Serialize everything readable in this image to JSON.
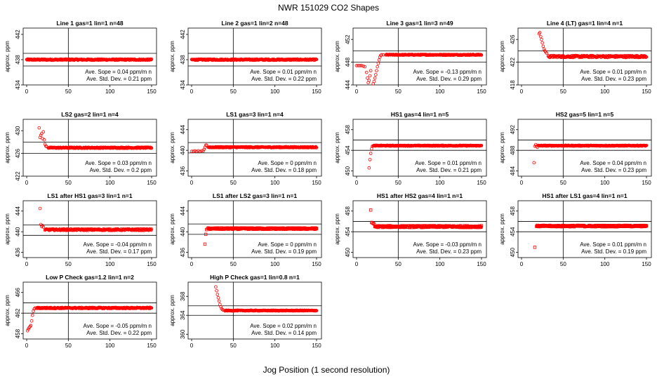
{
  "figure": {
    "title": "NWR  151029  CO2 Shapes",
    "xlabel": "Jog Position (1 second resolution)"
  },
  "chart_data": [
    {
      "type": "scatter",
      "title": "Line 1 gas=1 lin=1 n=48",
      "ylabel": "approx. ppm",
      "xlim": [
        0,
        150
      ],
      "xticks": [
        0,
        50,
        100,
        150
      ],
      "ylim": [
        434,
        443
      ],
      "yticks": [
        434,
        438,
        442
      ],
      "hlines": [
        439.0,
        437.0
      ],
      "vline": 50,
      "marker": "circle",
      "shape": {
        "start": 0,
        "end": 150,
        "base": 438.0,
        "noise": 0.1,
        "early": []
      },
      "slope_text": "Ave. Sope =  0.04  ppm/m n",
      "sd_text": "Ave. Std. Dev. =  0.21  ppm"
    },
    {
      "type": "scatter",
      "title": "Line 2 gas=1 lin=2 n=48",
      "ylabel": "approx. ppm",
      "xlim": [
        0,
        150
      ],
      "xticks": [
        0,
        50,
        100,
        150
      ],
      "ylim": [
        434,
        443
      ],
      "yticks": [
        434,
        438,
        442
      ],
      "hlines": [
        439.0,
        437.0
      ],
      "vline": 50,
      "marker": "circle",
      "shape": {
        "start": 0,
        "end": 150,
        "base": 438.0,
        "noise": 0.1,
        "early": []
      },
      "slope_text": "Ave. Sope =  0.01  ppm/m n",
      "sd_text": "Ave. Std. Dev. =  0.22  ppm"
    },
    {
      "type": "scatter",
      "title": "Line 3 gas=1 lin=3 n=49",
      "ylabel": "approx. ppm",
      "xlim": [
        0,
        150
      ],
      "xticks": [
        0,
        50,
        100,
        150
      ],
      "ylim": [
        444,
        454
      ],
      "yticks": [
        444,
        448,
        452
      ],
      "hlines": [
        450.0,
        448.0
      ],
      "vline": 50,
      "marker": "circle",
      "shape": {
        "start": 35,
        "end": 150,
        "base": 449.3,
        "noise": 0.08,
        "early": [
          [
            0,
            447.4
          ],
          [
            2,
            447.4
          ],
          [
            4,
            447.4
          ],
          [
            6,
            447.4
          ],
          [
            8,
            447.3
          ],
          [
            10,
            447.2
          ],
          [
            12,
            446.2
          ],
          [
            13,
            445.2
          ],
          [
            14,
            444.4
          ],
          [
            15,
            444.8
          ],
          [
            16,
            445.6
          ],
          [
            17,
            446.5
          ],
          [
            19,
            443.8
          ],
          [
            20,
            444.2
          ],
          [
            21,
            444.6
          ],
          [
            22,
            445.2
          ],
          [
            23,
            445.8
          ],
          [
            24,
            446.5
          ],
          [
            25,
            447.2
          ],
          [
            26,
            447.8
          ],
          [
            27,
            448.4
          ],
          [
            28,
            448.9
          ],
          [
            29,
            449.2
          ],
          [
            30,
            449.3
          ],
          [
            32,
            449.3
          ]
        ]
      },
      "slope_text": "Ave. Sope =  -0.13  ppm/m n",
      "sd_text": "Ave. Std. Dev. =  0.29  ppm"
    },
    {
      "type": "scatter",
      "title": "Line 4 (LT) gas=1 lin=4 n=1",
      "ylabel": "approx. ppm",
      "xlim": [
        0,
        150
      ],
      "xticks": [
        0,
        50,
        100,
        150
      ],
      "ylim": [
        418,
        428
      ],
      "yticks": [
        418,
        422,
        426
      ],
      "hlines": [
        424.0,
        422.0
      ],
      "vline": 50,
      "marker": "circle",
      "shape": {
        "start": 32,
        "end": 150,
        "base": 423.0,
        "noise": 0.18,
        "early": [
          [
            21,
            427.0
          ],
          [
            22,
            427.2
          ],
          [
            23,
            426.5
          ],
          [
            24,
            426.0
          ],
          [
            25,
            425.4
          ],
          [
            26,
            424.8
          ],
          [
            27,
            424.3
          ],
          [
            28,
            424.0
          ],
          [
            29,
            423.8
          ],
          [
            30,
            423.6
          ]
        ]
      },
      "slope_text": "Ave. Sope =  0.01  ppm/m n",
      "sd_text": "Ave. Std. Dev. =  0.23  ppm"
    },
    {
      "type": "scatter",
      "title": "LS2 gas=2 lin=1 n=4",
      "ylabel": "approx. ppm",
      "xlim": [
        0,
        150
      ],
      "xticks": [
        0,
        50,
        100,
        150
      ],
      "ylim": [
        422,
        432
      ],
      "yticks": [
        422,
        426,
        430
      ],
      "hlines": [
        428.0,
        426.0
      ],
      "vline": 50,
      "marker": "circle",
      "shape": {
        "start": 26,
        "end": 150,
        "base": 427.0,
        "noise": 0.1,
        "early": [
          [
            15,
            430.5
          ],
          [
            16,
            428.8
          ],
          [
            17,
            429.2
          ],
          [
            18,
            429.5
          ],
          [
            19,
            428.6
          ],
          [
            20,
            429.8
          ],
          [
            21,
            428.4
          ],
          [
            22,
            427.6
          ],
          [
            23,
            427.3
          ],
          [
            24,
            427.2
          ]
        ]
      },
      "slope_text": "Ave. Sope =  0.03  ppm/m n",
      "sd_text": "Ave. Std. Dev. =  0.2  ppm"
    },
    {
      "type": "scatter",
      "title": "LS1 gas=3 lin=1 n=4",
      "ylabel": "approx. ppm",
      "xlim": [
        0,
        150
      ],
      "xticks": [
        0,
        50,
        100,
        150
      ],
      "ylim": [
        435,
        446
      ],
      "yticks": [
        436,
        440,
        444
      ],
      "hlines": [
        441.5,
        439.5
      ],
      "vline": 50,
      "marker": "circle",
      "shape": {
        "start": 20,
        "end": 150,
        "base": 440.6,
        "noise": 0.1,
        "early": [
          [
            0,
            439.8
          ],
          [
            2,
            439.8
          ],
          [
            4,
            439.9
          ],
          [
            6,
            439.8
          ],
          [
            8,
            439.9
          ],
          [
            10,
            439.8
          ],
          [
            12,
            439.9
          ],
          [
            14,
            439.9
          ],
          [
            15,
            440.2
          ],
          [
            16,
            440.6
          ],
          [
            17,
            441.0
          ],
          [
            18,
            441.0
          ]
        ]
      },
      "slope_text": "Ave. Sope =  0  ppm/m n",
      "sd_text": "Ave. Std. Dev. =  0.18  ppm"
    },
    {
      "type": "scatter",
      "title": "HS1 gas=4 lin=1 n=5",
      "ylabel": "approx. ppm",
      "xlim": [
        0,
        150
      ],
      "xticks": [
        0,
        50,
        100,
        150
      ],
      "ylim": [
        449,
        460
      ],
      "yticks": [
        450,
        454,
        458
      ],
      "hlines": [
        456.0,
        454.0
      ],
      "vline": 50,
      "marker": "circle",
      "shape": {
        "start": 20,
        "end": 150,
        "base": 454.9,
        "noise": 0.08,
        "early": [
          [
            15,
            450.6
          ],
          [
            16,
            452.2
          ],
          [
            17,
            453.4
          ],
          [
            18,
            454.3
          ],
          [
            19,
            454.8
          ]
        ]
      },
      "slope_text": "Ave. Sope =  0.01  ppm/m n",
      "sd_text": "Ave. Std. Dev. =  0.21  ppm"
    },
    {
      "type": "scatter",
      "title": "HS2 gas=5 lin=1 n=5",
      "ylabel": "approx. ppm",
      "xlim": [
        0,
        150
      ],
      "xticks": [
        0,
        50,
        100,
        150
      ],
      "ylim": [
        483,
        494
      ],
      "yticks": [
        484,
        488,
        492
      ],
      "hlines": [
        490.0,
        488.0
      ],
      "vline": 50,
      "marker": "circle",
      "shape": {
        "start": 20,
        "end": 150,
        "base": 488.9,
        "noise": 0.08,
        "early": [
          [
            15,
            485.6
          ],
          [
            16,
            488.8
          ],
          [
            17,
            489.1
          ],
          [
            18,
            488.8
          ],
          [
            19,
            488.6
          ]
        ]
      },
      "slope_text": "Ave. Sope =  0.04  ppm/m n",
      "sd_text": "Ave. Std. Dev. =  0.23  ppm"
    },
    {
      "type": "scatter",
      "title": "LS1 after HS1 gas=3 lin=1 n=1",
      "ylabel": "approx. ppm",
      "xlim": [
        0,
        150
      ],
      "xticks": [
        0,
        50,
        100,
        150
      ],
      "ylim": [
        435,
        446
      ],
      "yticks": [
        436,
        440,
        444
      ],
      "hlines": [
        441.3,
        439.3
      ],
      "vline": 50,
      "marker": "circle",
      "shape": {
        "start": 22,
        "end": 150,
        "base": 440.4,
        "noise": 0.15,
        "early": [
          [
            16,
            444.5
          ],
          [
            17,
            441.4
          ],
          [
            18,
            441.0
          ],
          [
            19,
            441.2
          ],
          [
            20,
            440.9
          ]
        ]
      },
      "slope_text": "Ave. Sope =  -0.04  ppm/m n",
      "sd_text": "Ave. Std. Dev. =  0.17  ppm"
    },
    {
      "type": "scatter",
      "title": "LS1 after LS2 gas=3 lin=1 n=1",
      "ylabel": "approx. ppm",
      "xlim": [
        0,
        150
      ],
      "xticks": [
        0,
        50,
        100,
        150
      ],
      "ylim": [
        435,
        446
      ],
      "yticks": [
        436,
        440,
        444
      ],
      "hlines": [
        441.5,
        439.5
      ],
      "vline": 50,
      "marker": "square",
      "shape": {
        "start": 20,
        "end": 150,
        "base": 440.6,
        "noise": 0.15,
        "early": [
          [
            16,
            437.6
          ],
          [
            17,
            439.5
          ],
          [
            18,
            440.4
          ],
          [
            19,
            440.6
          ]
        ]
      },
      "slope_text": "Ave. Sope =  0  ppm/m n",
      "sd_text": "Ave. Std. Dev. =  0.19  ppm"
    },
    {
      "type": "scatter",
      "title": "HS1 after HS2 gas=4 lin=1 n=1",
      "ylabel": "approx. ppm",
      "xlim": [
        0,
        150
      ],
      "xticks": [
        0,
        50,
        100,
        150
      ],
      "ylim": [
        449,
        460
      ],
      "yticks": [
        450,
        454,
        458
      ],
      "hlines": [
        456.0,
        454.0
      ],
      "vline": 50,
      "marker": "square",
      "shape": {
        "start": 22,
        "end": 150,
        "base": 455.0,
        "noise": 0.18,
        "early": [
          [
            17,
            458.2
          ],
          [
            18,
            455.8
          ],
          [
            19,
            455.7
          ],
          [
            20,
            455.6
          ],
          [
            21,
            455.5
          ]
        ]
      },
      "slope_text": "Ave. Sope =  -0.03  ppm/m n",
      "sd_text": "Ave. Std. Dev. =  0.23  ppm"
    },
    {
      "type": "scatter",
      "title": "HS1 after LS1 gas=4 lin=1 n=1",
      "ylabel": "approx. ppm",
      "xlim": [
        0,
        150
      ],
      "xticks": [
        0,
        50,
        100,
        150
      ],
      "ylim": [
        449,
        460
      ],
      "yticks": [
        450,
        454,
        458
      ],
      "hlines": [
        456.0,
        454.0
      ],
      "vline": 50,
      "marker": "square",
      "shape": {
        "start": 18,
        "end": 150,
        "base": 455.1,
        "noise": 0.15,
        "early": [
          [
            16,
            451.0
          ]
        ]
      },
      "slope_text": "Ave. Sope =  0.01  ppm/m n",
      "sd_text": "Ave. Std. Dev. =  0.19  ppm"
    },
    {
      "type": "scatter",
      "title": "Low P Check gas=1.2 lin=1 n=2",
      "ylabel": "approx. ppm",
      "xlim": [
        0,
        150
      ],
      "xticks": [
        0,
        50,
        100,
        150
      ],
      "ylim": [
        457,
        468
      ],
      "yticks": [
        458,
        462,
        466
      ],
      "hlines": [
        464.0,
        462.0
      ],
      "vline": 50,
      "marker": "circle",
      "shape": {
        "start": 12,
        "end": 150,
        "base": 463.0,
        "noise": 0.12,
        "early": [
          [
            1,
            458.6
          ],
          [
            2,
            458.9
          ],
          [
            3,
            459.2
          ],
          [
            4,
            459.4
          ],
          [
            5,
            459.6
          ],
          [
            6,
            460.5
          ],
          [
            7,
            461.6
          ],
          [
            8,
            462.4
          ],
          [
            9,
            462.8
          ],
          [
            10,
            463.0
          ]
        ]
      },
      "slope_text": "Ave. Sope =  -0.05  ppm/m n",
      "sd_text": "Ave. Std. Dev. =  0.22  ppm"
    },
    {
      "type": "scatter",
      "title": "High P Check gas=1 lin=0.8 n=1",
      "ylabel": "approx. ppm",
      "xlim": [
        0,
        150
      ],
      "xticks": [
        0,
        50,
        100,
        150
      ],
      "ylim": [
        359,
        371
      ],
      "yticks": [
        360,
        364,
        368
      ],
      "hlines": [
        366.0,
        364.0
      ],
      "vline": 50,
      "marker": "circle",
      "shape": {
        "start": 40,
        "end": 150,
        "base": 365.0,
        "noise": 0.08,
        "early": [
          [
            29,
            370.0
          ],
          [
            30,
            369.2
          ],
          [
            31,
            368.4
          ],
          [
            32,
            367.7
          ],
          [
            33,
            367.0
          ],
          [
            34,
            366.3
          ],
          [
            35,
            365.8
          ],
          [
            36,
            365.4
          ],
          [
            37,
            365.2
          ],
          [
            38,
            365.1
          ]
        ]
      },
      "slope_text": "Ave. Sope =  0.02  ppm/m n",
      "sd_text": "Ave. Std. Dev. =  0.14  ppm"
    }
  ],
  "colors": {
    "marker": "#ff0000",
    "axis": "#000000",
    "background": "#ffffff"
  }
}
